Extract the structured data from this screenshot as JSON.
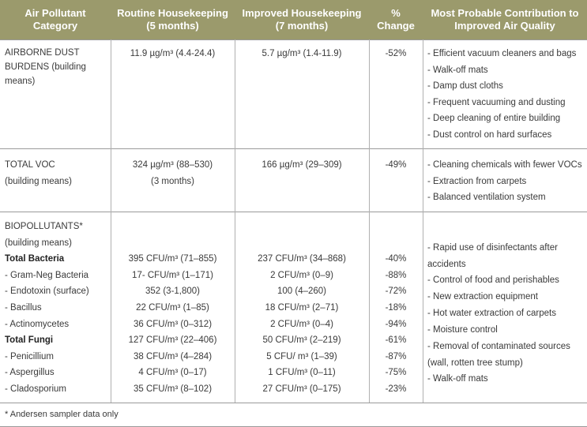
{
  "table": {
    "header": [
      "Air Pollutant Category",
      "Routine Housekeeping (5 months)",
      "Improved Housekeeping (7 months)",
      "% Change",
      "Most Probable Contribution to Improved Air Quality"
    ],
    "rows": [
      {
        "category": "AIRBORNE DUST BURDENS (building means)",
        "routine": "11.9 µg/m³ (4.4-24.4)",
        "improved": "5.7 µg/m³ (1.4-11.9)",
        "change": "-52%",
        "contributions": [
          "- Efficient vacuum cleaners and bags",
          "- Walk-off mats",
          "- Damp dust cloths",
          "- Frequent vacuuming and dusting",
          "- Deep cleaning of entire building",
          "- Dust control on hard surfaces"
        ]
      },
      {
        "category": "TOTAL VOC",
        "note": "(building means)",
        "routine": "324 µg/m³ (88–530)",
        "routine_note": "(3 months)",
        "improved": "166 µg/m³ (29–309)",
        "change": "-49%",
        "contributions": [
          "- Cleaning chemicals with fewer VOCs",
          "- Extraction from carpets",
          "- Balanced ventilation system"
        ]
      },
      {
        "category": "BIOPOLLUTANTS*",
        "note": "(building means)",
        "items": [
          {
            "name": "Total Bacteria",
            "bold": true,
            "routine": "395 CFU/m³ (71–855)",
            "improved": "237 CFU/m³ (34–868)",
            "change": "-40%"
          },
          {
            "name": "- Gram-Neg Bacteria",
            "routine": "17- CFU/m³ (1–171)",
            "improved": "2 CFU/m³ (0–9)",
            "change": "-88%"
          },
          {
            "name": "- Endotoxin (surface)",
            "routine": "352 (3-1,800)",
            "improved": "100 (4–260)",
            "change": "-72%"
          },
          {
            "name": "- Bacillus",
            "routine": "22 CFU/m³ (1–85)",
            "improved": "18 CFU/m³ (2–71)",
            "change": "-18%"
          },
          {
            "name": "- Actinomycetes",
            "routine": "36 CFU/m³ (0–312)",
            "improved": "2 CFU/m³ (0–4)",
            "change": "-94%"
          },
          {
            "name": "Total Fungi",
            "bold": true,
            "routine": "127 CFU/m³ (22–406)",
            "improved": "50 CFU/m³ (2–219)",
            "change": "-61%"
          },
          {
            "name": "- Penicillium",
            "routine": "38 CFU/m³ (4–284)",
            "improved": "5 CFU/ m³ (1–39)",
            "change": "-87%"
          },
          {
            "name": "- Aspergillus",
            "routine": "4 CFU/m³ (0–17)",
            "improved": "1 CFU/m³ (0–11)",
            "change": "-75%"
          },
          {
            "name": "- Cladosporium",
            "routine": "35 CFU/m³ (8–102)",
            "improved": "27 CFU/m³ (0–175)",
            "change": "-23%"
          }
        ],
        "contributions": [
          "- Rapid use of disinfectants after accidents",
          "- Control of food and perishables",
          "- New extraction equipment",
          "- Hot water extraction of carpets",
          "- Moisture control",
          "- Removal of contaminated sources (wall, rotten tree stump)",
          "- Walk-off mats"
        ]
      }
    ],
    "footnote": "* Andersen sampler data only"
  }
}
